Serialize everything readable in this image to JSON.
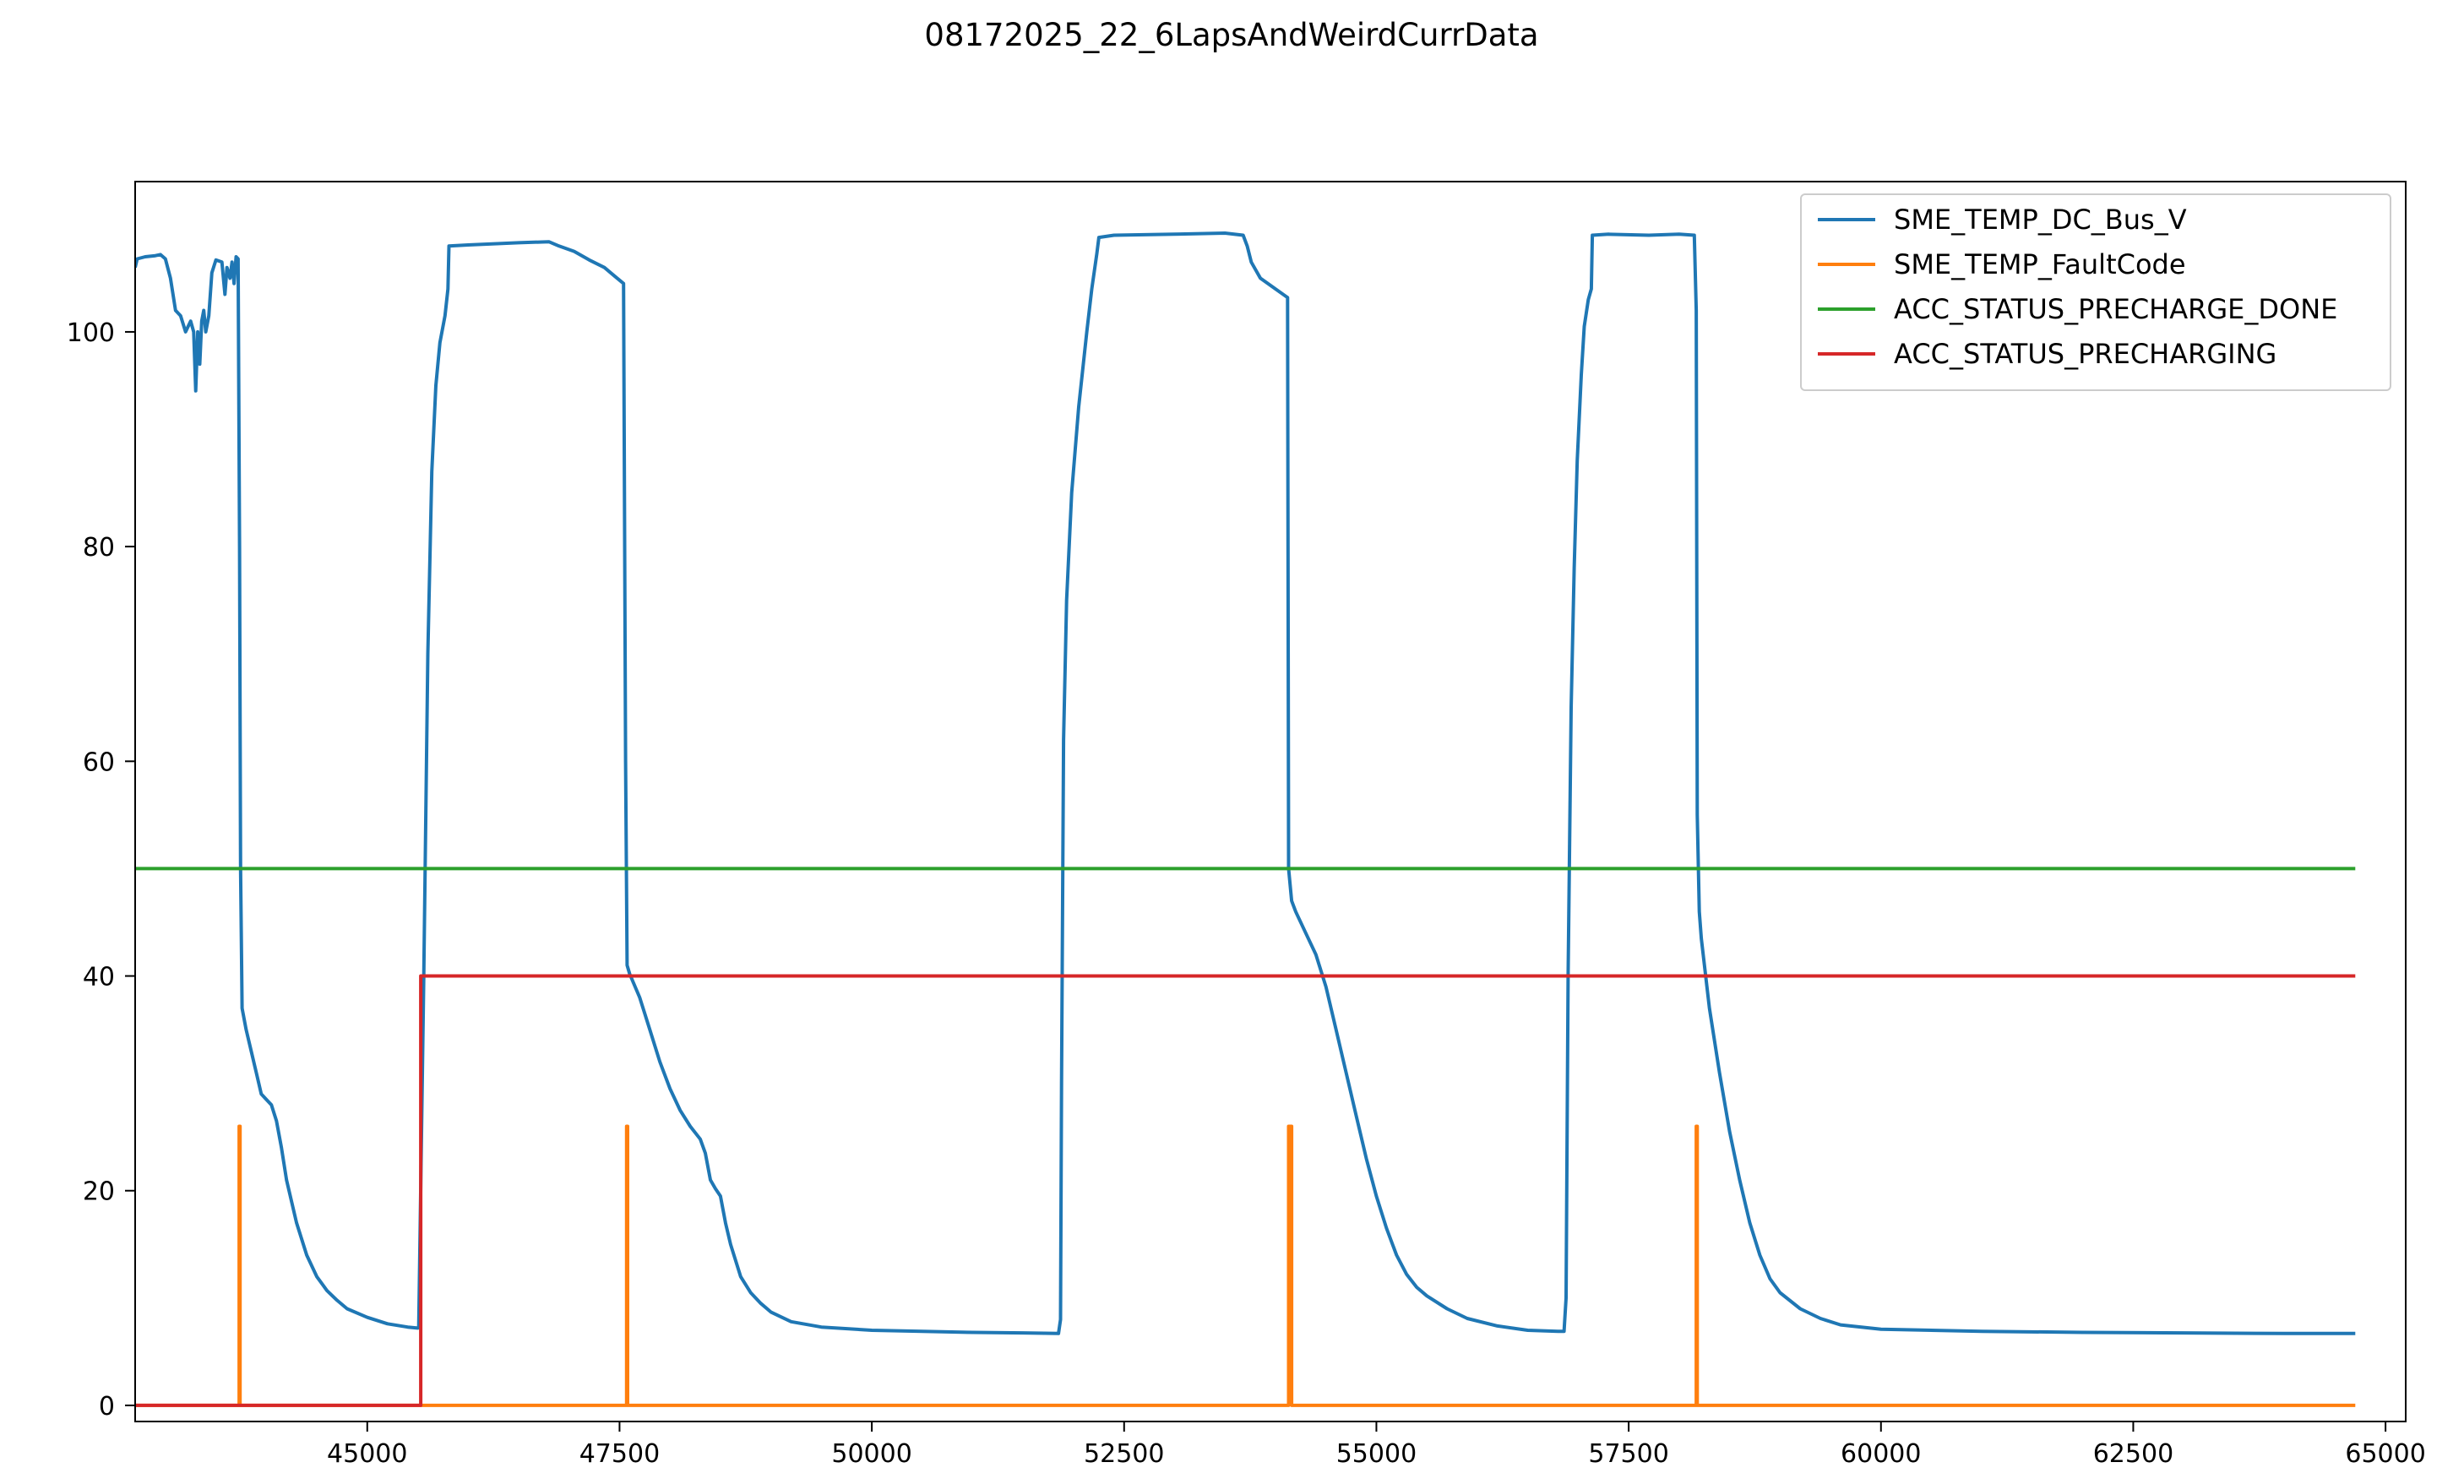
{
  "chart_data": {
    "type": "line",
    "title": "08172025_22_6LapsAndWeirdCurrData",
    "xlabel": "",
    "ylabel": "",
    "xlim": [
      42700,
      65200
    ],
    "ylim": [
      -1.5,
      114
    ],
    "x_ticks": [
      45000,
      47500,
      50000,
      52500,
      55000,
      57500,
      60000,
      62500,
      65000
    ],
    "x_tick_labels": [
      "45000",
      "47500",
      "50000",
      "52500",
      "55000",
      "57500",
      "60000",
      "62500",
      "65000"
    ],
    "y_ticks": [
      0,
      20,
      40,
      60,
      80,
      100
    ],
    "y_tick_labels": [
      "0",
      "20",
      "40",
      "60",
      "80",
      "100"
    ],
    "grid": false,
    "legend_position": "top-right",
    "series": [
      {
        "name": "SME_TEMP_DC_Bus_V",
        "color": "#1f77b4",
        "points": [
          [
            42700,
            106
          ],
          [
            42720,
            106.8
          ],
          [
            42800,
            107
          ],
          [
            42900,
            107.1
          ],
          [
            42950,
            107.2
          ],
          [
            43000,
            106.8
          ],
          [
            43050,
            105
          ],
          [
            43100,
            102
          ],
          [
            43150,
            101.5
          ],
          [
            43200,
            100
          ],
          [
            43250,
            101
          ],
          [
            43280,
            100
          ],
          [
            43300,
            94.5
          ],
          [
            43320,
            100
          ],
          [
            43340,
            97
          ],
          [
            43360,
            101
          ],
          [
            43380,
            102
          ],
          [
            43400,
            100
          ],
          [
            43430,
            101.5
          ],
          [
            43460,
            105.5
          ],
          [
            43500,
            106.7
          ],
          [
            43560,
            106.5
          ],
          [
            43590,
            103.5
          ],
          [
            43610,
            106
          ],
          [
            43640,
            105
          ],
          [
            43660,
            106.5
          ],
          [
            43680,
            104.5
          ],
          [
            43700,
            107
          ],
          [
            43720,
            106.8
          ],
          [
            43735,
            80
          ],
          [
            43745,
            50
          ],
          [
            43760,
            37
          ],
          [
            43800,
            35
          ],
          [
            43850,
            33
          ],
          [
            43900,
            31
          ],
          [
            43950,
            29
          ],
          [
            44000,
            28.5
          ],
          [
            44050,
            28
          ],
          [
            44100,
            26.5
          ],
          [
            44150,
            24
          ],
          [
            44200,
            21
          ],
          [
            44300,
            17
          ],
          [
            44400,
            14
          ],
          [
            44500,
            12
          ],
          [
            44600,
            10.7
          ],
          [
            44700,
            9.8
          ],
          [
            44800,
            9
          ],
          [
            45000,
            8.2
          ],
          [
            45200,
            7.6
          ],
          [
            45400,
            7.3
          ],
          [
            45500,
            7.2
          ],
          [
            45510,
            7.3
          ],
          [
            45560,
            40
          ],
          [
            45600,
            70
          ],
          [
            45640,
            87
          ],
          [
            45680,
            95
          ],
          [
            45720,
            99
          ],
          [
            45770,
            101.5
          ],
          [
            45800,
            104
          ],
          [
            45810,
            108
          ],
          [
            46000,
            108.1
          ],
          [
            46500,
            108.3
          ],
          [
            46800,
            108.4
          ],
          [
            46900,
            108
          ],
          [
            47050,
            107.5
          ],
          [
            47200,
            106.7
          ],
          [
            47350,
            106
          ],
          [
            47450,
            105.2
          ],
          [
            47540,
            104.5
          ],
          [
            47560,
            60
          ],
          [
            47575,
            41
          ],
          [
            47600,
            40.2
          ],
          [
            47700,
            38
          ],
          [
            47800,
            35
          ],
          [
            47900,
            32
          ],
          [
            48000,
            29.5
          ],
          [
            48100,
            27.5
          ],
          [
            48200,
            26
          ],
          [
            48300,
            24.8
          ],
          [
            48350,
            23.5
          ],
          [
            48400,
            21
          ],
          [
            48450,
            20.2
          ],
          [
            48500,
            19.5
          ],
          [
            48550,
            17
          ],
          [
            48600,
            15
          ],
          [
            48700,
            12
          ],
          [
            48800,
            10.5
          ],
          [
            48900,
            9.5
          ],
          [
            49000,
            8.7
          ],
          [
            49200,
            7.8
          ],
          [
            49500,
            7.3
          ],
          [
            50000,
            7
          ],
          [
            50500,
            6.9
          ],
          [
            51000,
            6.8
          ],
          [
            51500,
            6.75
          ],
          [
            51850,
            6.7
          ],
          [
            51870,
            8
          ],
          [
            51880,
            30
          ],
          [
            51900,
            62
          ],
          [
            51930,
            75
          ],
          [
            51980,
            85
          ],
          [
            52050,
            93
          ],
          [
            52130,
            100
          ],
          [
            52180,
            104
          ],
          [
            52230,
            107.3
          ],
          [
            52250,
            108.8
          ],
          [
            52400,
            109
          ],
          [
            53000,
            109.1
          ],
          [
            53500,
            109.2
          ],
          [
            53680,
            109
          ],
          [
            53720,
            108
          ],
          [
            53760,
            106.5
          ],
          [
            53850,
            105
          ],
          [
            54000,
            104
          ],
          [
            54120,
            103.2
          ],
          [
            54130,
            50
          ],
          [
            54160,
            47
          ],
          [
            54200,
            46
          ],
          [
            54300,
            44
          ],
          [
            54400,
            42
          ],
          [
            54500,
            39
          ],
          [
            54600,
            35
          ],
          [
            54700,
            31
          ],
          [
            54800,
            27
          ],
          [
            54900,
            23
          ],
          [
            55000,
            19.5
          ],
          [
            55100,
            16.5
          ],
          [
            55200,
            14
          ],
          [
            55300,
            12.2
          ],
          [
            55400,
            11
          ],
          [
            55500,
            10.2
          ],
          [
            55700,
            9
          ],
          [
            55900,
            8.1
          ],
          [
            56200,
            7.4
          ],
          [
            56500,
            7
          ],
          [
            56800,
            6.9
          ],
          [
            56860,
            6.9
          ],
          [
            56880,
            10
          ],
          [
            56900,
            40
          ],
          [
            56930,
            65
          ],
          [
            56960,
            78
          ],
          [
            56990,
            88
          ],
          [
            57030,
            96
          ],
          [
            57060,
            100.5
          ],
          [
            57100,
            103
          ],
          [
            57130,
            104
          ],
          [
            57140,
            109
          ],
          [
            57300,
            109.1
          ],
          [
            57700,
            109
          ],
          [
            58000,
            109.1
          ],
          [
            58150,
            109
          ],
          [
            58170,
            102
          ],
          [
            58180,
            55
          ],
          [
            58200,
            46
          ],
          [
            58220,
            43.5
          ],
          [
            58300,
            37
          ],
          [
            58400,
            31
          ],
          [
            58500,
            25.5
          ],
          [
            58600,
            21
          ],
          [
            58700,
            17
          ],
          [
            58800,
            14
          ],
          [
            58900,
            11.8
          ],
          [
            59000,
            10.5
          ],
          [
            59200,
            9
          ],
          [
            59400,
            8.1
          ],
          [
            59600,
            7.5
          ],
          [
            60000,
            7.1
          ],
          [
            61000,
            6.9
          ],
          [
            62000,
            6.8
          ],
          [
            63000,
            6.75
          ],
          [
            64000,
            6.7
          ],
          [
            64500,
            6.7
          ],
          [
            64700,
            6.7
          ]
        ]
      },
      {
        "name": "SME_TEMP_FaultCode",
        "color": "#ff7f0e",
        "points": [
          [
            42700,
            0
          ],
          [
            43730,
            0
          ],
          [
            43730,
            26
          ],
          [
            43740,
            26
          ],
          [
            43740,
            0
          ],
          [
            47570,
            0
          ],
          [
            47570,
            26
          ],
          [
            47580,
            26
          ],
          [
            47580,
            0
          ],
          [
            54130,
            0
          ],
          [
            54130,
            26
          ],
          [
            54160,
            26
          ],
          [
            54160,
            0
          ],
          [
            58170,
            0
          ],
          [
            58170,
            26
          ],
          [
            58180,
            26
          ],
          [
            58180,
            0
          ],
          [
            64700,
            0
          ]
        ]
      },
      {
        "name": "ACC_STATUS_PRECHARGE_DONE",
        "color": "#2ca02c",
        "points": [
          [
            42700,
            50
          ],
          [
            64700,
            50
          ]
        ]
      },
      {
        "name": "ACC_STATUS_PRECHARGING",
        "color": "#d62728",
        "points": [
          [
            42700,
            0
          ],
          [
            45530,
            0
          ],
          [
            45530,
            40
          ],
          [
            64700,
            40
          ]
        ]
      }
    ]
  }
}
